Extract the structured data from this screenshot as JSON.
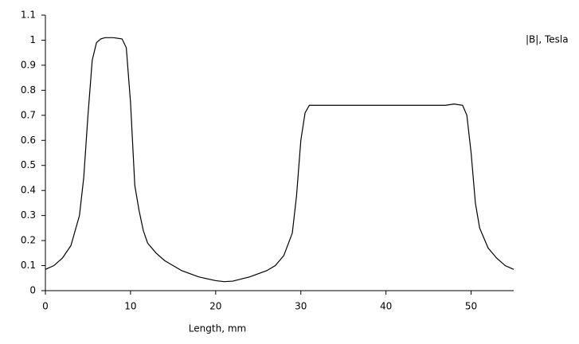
{
  "chart_data": {
    "type": "line",
    "x_label": "Length, mm",
    "x": [
      0,
      1,
      2,
      3,
      4,
      4.5,
      5,
      5.5,
      6,
      6.5,
      7,
      8,
      9,
      9.5,
      10,
      10.5,
      11,
      11.5,
      12,
      13,
      14,
      16,
      18,
      20,
      21,
      22,
      24,
      26,
      27,
      28,
      29,
      29.5,
      30,
      30.5,
      31,
      35,
      40,
      47,
      48,
      49,
      49.5,
      50,
      50.5,
      51,
      52,
      53,
      54,
      55
    ],
    "series": [
      {
        "name": "|B|, Tesla",
        "color": "#000000",
        "values": [
          0.085,
          0.1,
          0.13,
          0.18,
          0.3,
          0.45,
          0.7,
          0.92,
          0.99,
          1.005,
          1.01,
          1.01,
          1.005,
          0.97,
          0.75,
          0.42,
          0.32,
          0.24,
          0.19,
          0.15,
          0.12,
          0.08,
          0.055,
          0.04,
          0.036,
          0.038,
          0.055,
          0.08,
          0.1,
          0.14,
          0.23,
          0.38,
          0.6,
          0.71,
          0.74,
          0.74,
          0.74,
          0.74,
          0.745,
          0.74,
          0.7,
          0.55,
          0.35,
          0.25,
          0.17,
          0.13,
          0.1,
          0.085
        ]
      }
    ],
    "xlim": [
      0,
      55
    ],
    "xticks": [
      0,
      10,
      20,
      30,
      40,
      50
    ],
    "ylim": [
      0,
      1.1
    ],
    "yticks": [
      0,
      0.1,
      0.2,
      0.3,
      0.4,
      0.5,
      0.6,
      0.7,
      0.8,
      0.9,
      1,
      1.1
    ],
    "grid": false
  }
}
